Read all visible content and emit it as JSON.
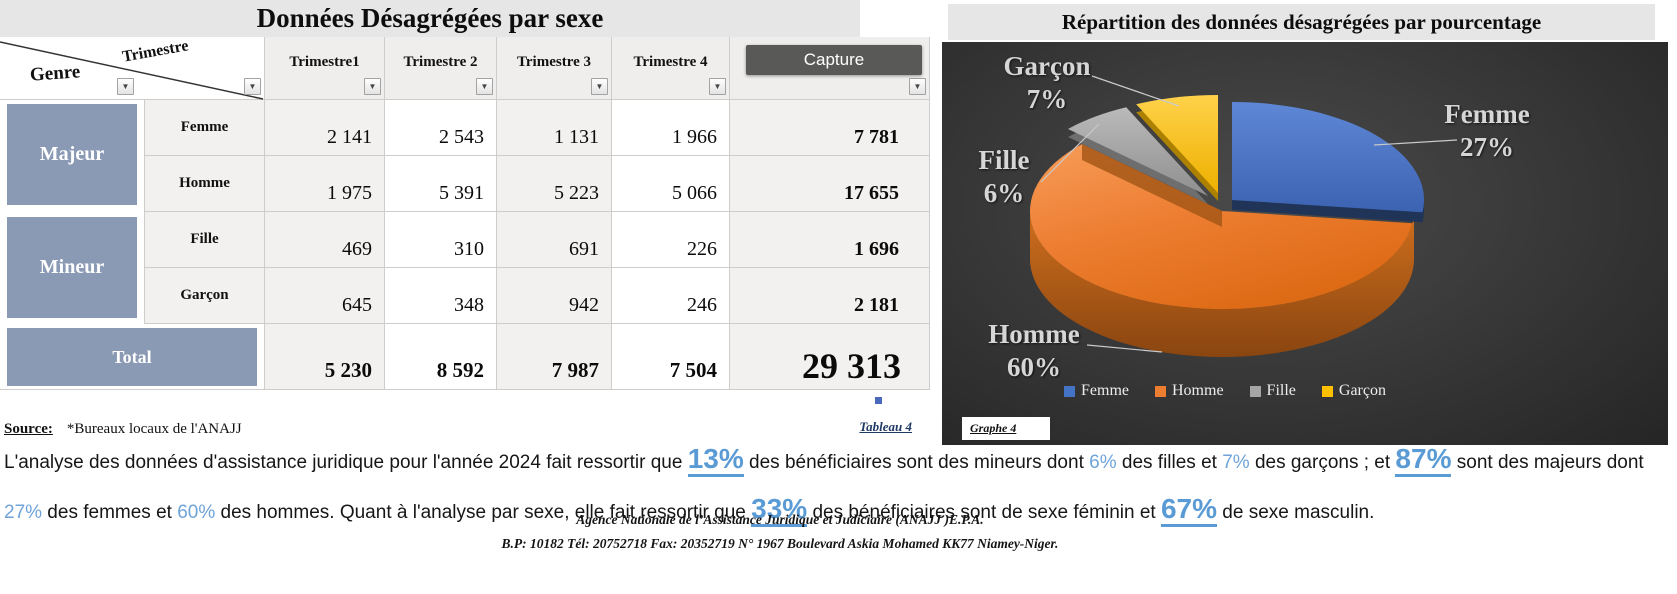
{
  "window": {
    "capture_tooltip": "Capture"
  },
  "table": {
    "title": "Données Désagrégées par sexe",
    "corner": {
      "genre": "Genre",
      "trimestre": "Trimestre"
    },
    "columns": [
      "Trimestre1",
      "Trimestre 2",
      "Trimestre 3",
      "Trimestre 4"
    ],
    "total_column": "Total",
    "groups": [
      {
        "label": "Majeur"
      },
      {
        "label": "Mineur"
      }
    ],
    "rows": [
      {
        "label": "Femme",
        "values": [
          "2 141",
          "2 543",
          "1 131",
          "1 966"
        ],
        "total": "7 781"
      },
      {
        "label": "Homme",
        "values": [
          "1 975",
          "5 391",
          "5 223",
          "5 066"
        ],
        "total": "17 655"
      },
      {
        "label": "Fille",
        "values": [
          "469",
          "310",
          "691",
          "226"
        ],
        "total": "1 696"
      },
      {
        "label": "Garçon",
        "values": [
          "645",
          "348",
          "942",
          "246"
        ],
        "total": "2 181"
      }
    ],
    "total_row": {
      "label": "Total",
      "values": [
        "5 230",
        "8 592",
        "7 987",
        "7 504"
      ],
      "total": "29 313"
    },
    "source_label": "Source:",
    "source_value": "*Bureaux locaux de l'ANAJJ",
    "sheet_ref": "Tableau 4"
  },
  "chart": {
    "title": "Répartition des données désagrégées par pourcentage",
    "sheet_ref": "Graphe 4"
  },
  "chart_data": {
    "type": "pie",
    "title": "Répartition des données désagrégées par pourcentage",
    "labels": [
      "Femme",
      "Homme",
      "Fille",
      "Garçon"
    ],
    "values": [
      27,
      60,
      6,
      7
    ],
    "unit": "%",
    "display_labels": [
      "27%",
      "60%",
      "6%",
      "7%"
    ],
    "colors": [
      "#4472C4",
      "#ED7D31",
      "#A5A5A5",
      "#FFC000"
    ],
    "style": "3d-pie-exploded",
    "legend_position": "bottom",
    "background": "#3a3a3a"
  },
  "analysis": {
    "segments": [
      {
        "t": "L'analyse des données d'assistance juridique pour l'année 2024 fait ressortir que ",
        "s": "plain"
      },
      {
        "t": "13%",
        "s": "big"
      },
      {
        "t": " des bénéficiaires sont des mineurs dont ",
        "s": "plain"
      },
      {
        "t": "6%",
        "s": "small"
      },
      {
        "t": " des filles  et ",
        "s": "plain"
      },
      {
        "t": "7%",
        "s": "small"
      },
      {
        "t": " des garçons ; et ",
        "s": "plain"
      },
      {
        "t": "87%",
        "s": "big"
      },
      {
        "t": " sont des majeurs dont ",
        "s": "plain"
      },
      {
        "t": "27%",
        "s": "small"
      },
      {
        "t": " des femmes et ",
        "s": "plain"
      },
      {
        "t": "60%",
        "s": "small"
      },
      {
        "t": " des hommes.  Quant à l'analyse par sexe, elle fait ressortir que ",
        "s": "plain"
      },
      {
        "t": "33%",
        "s": "big"
      },
      {
        "t": " des bénéficiaires sont de sexe féminin et ",
        "s": "plain"
      },
      {
        "t": "67%",
        "s": "big"
      },
      {
        "t": " de sexe masculin.",
        "s": "plain"
      }
    ]
  },
  "footer": {
    "line1": "Agence Nationale de l’Assistance Juridique et Judiciaire (ANAJJ )E.P.A.",
    "line2": "B.P: 10182 Tél: 20752718 Fax: 20352719 N° 1967 Boulevard Askia Mohamed KK77 Niamey-Niger."
  }
}
